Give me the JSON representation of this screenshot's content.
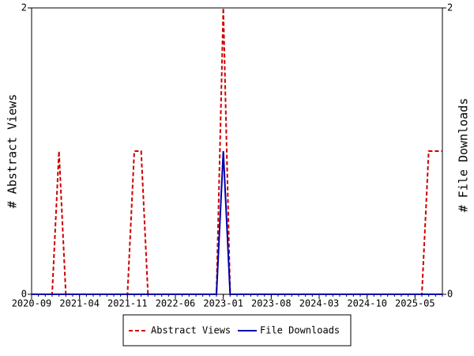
{
  "chart_data": {
    "type": "line",
    "y_label": "# Abstract Views",
    "y2_label": "# File Downloads",
    "x": [
      "2020-09",
      "2020-10",
      "2020-11",
      "2020-12",
      "2021-01",
      "2021-02",
      "2021-03",
      "2021-04",
      "2021-05",
      "2021-06",
      "2021-07",
      "2021-08",
      "2021-09",
      "2021-10",
      "2021-11",
      "2021-12",
      "2022-01",
      "2022-02",
      "2022-03",
      "2022-04",
      "2022-05",
      "2022-06",
      "2022-07",
      "2022-08",
      "2022-09",
      "2022-10",
      "2022-11",
      "2022-12",
      "2023-01",
      "2023-02",
      "2023-03",
      "2023-04",
      "2023-05",
      "2023-06",
      "2023-07",
      "2023-08",
      "2023-09",
      "2023-10",
      "2023-11",
      "2023-12",
      "2024-01",
      "2024-02",
      "2024-03",
      "2024-04",
      "2024-05",
      "2024-06",
      "2024-07",
      "2024-08",
      "2024-09",
      "2024-10",
      "2024-11",
      "2024-12",
      "2025-01",
      "2025-02",
      "2025-03",
      "2025-04",
      "2025-05",
      "2025-06",
      "2025-07",
      "2025-08",
      "2025-09"
    ],
    "series": [
      {
        "name": "Abstract Views",
        "color": "#cc0000",
        "dash": true,
        "values": [
          0,
          0,
          0,
          0,
          1,
          0,
          0,
          0,
          0,
          0,
          0,
          0,
          0,
          0,
          0,
          1,
          1,
          0,
          0,
          0,
          0,
          0,
          0,
          0,
          0,
          0,
          0,
          0,
          2,
          0,
          0,
          0,
          0,
          0,
          0,
          0,
          0,
          0,
          0,
          0,
          0,
          0,
          0,
          0,
          0,
          0,
          0,
          0,
          0,
          0,
          0,
          0,
          0,
          0,
          0,
          0,
          0,
          0,
          1,
          1,
          1
        ]
      },
      {
        "name": "File Downloads",
        "color": "#0000aa",
        "dash": false,
        "axis": "y2",
        "values": [
          0,
          0,
          0,
          0,
          0,
          0,
          0,
          0,
          0,
          0,
          0,
          0,
          0,
          0,
          0,
          0,
          0,
          0,
          0,
          0,
          0,
          0,
          0,
          0,
          0,
          0,
          0,
          0,
          1,
          0,
          0,
          0,
          0,
          0,
          0,
          0,
          0,
          0,
          0,
          0,
          0,
          0,
          0,
          0,
          0,
          0,
          0,
          0,
          0,
          0,
          0,
          0,
          0,
          0,
          0,
          0,
          0,
          0,
          0,
          0,
          0
        ]
      }
    ],
    "xlim": [
      "2020-09",
      "2025-09"
    ],
    "xticks": [
      "2020-09",
      "2021-04",
      "2021-11",
      "2022-06",
      "2023-01",
      "2023-08",
      "2024-03",
      "2024-10",
      "2025-05"
    ],
    "ylim": [
      0,
      2
    ],
    "yticks": [
      0,
      2
    ],
    "y2lim": [
      0,
      2
    ],
    "y2ticks": [
      0,
      2
    ],
    "legend": "bottom"
  }
}
